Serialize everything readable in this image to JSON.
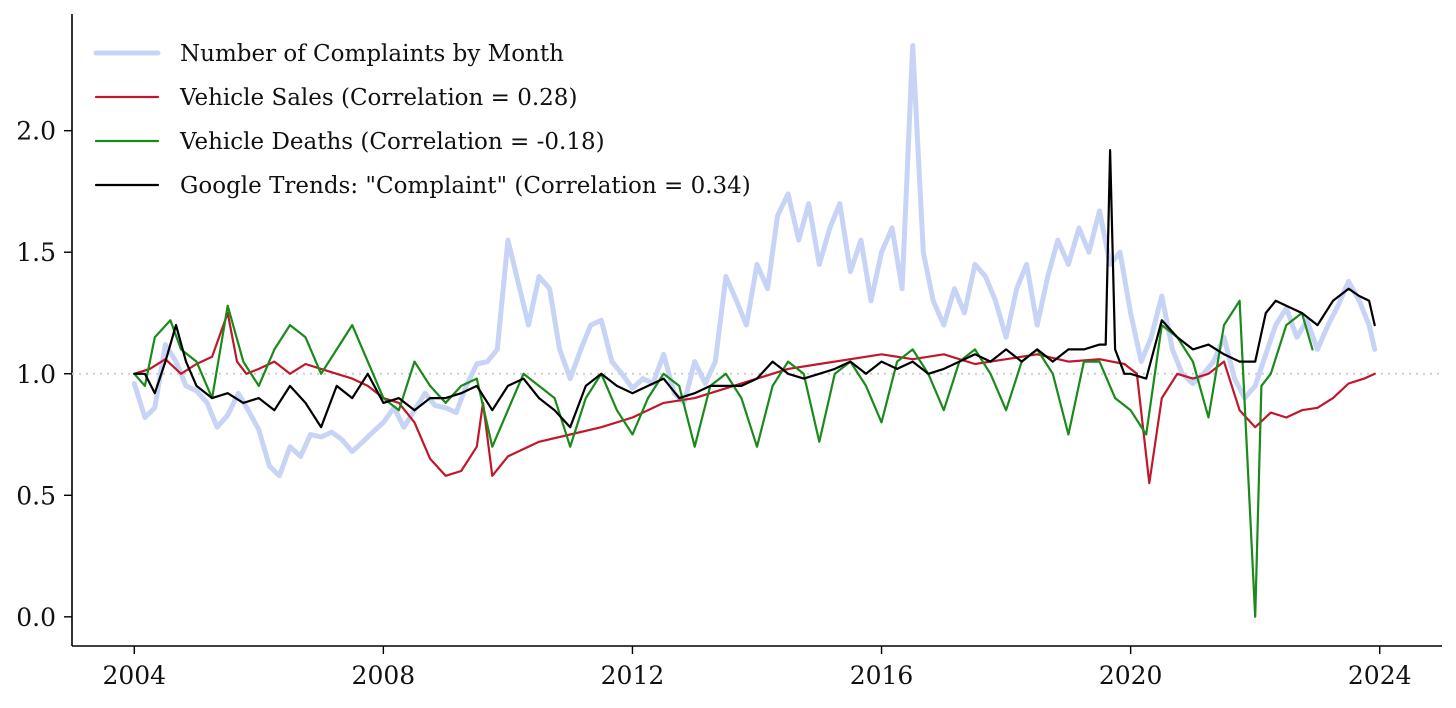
{
  "chart_data": {
    "type": "line",
    "title": "",
    "xlabel": "",
    "ylabel": "",
    "xlim": [
      2003.0,
      2025.0
    ],
    "ylim": [
      -0.12,
      2.48
    ],
    "x_ticks": [
      "2004",
      "2008",
      "2012",
      "2016",
      "2020",
      "2024"
    ],
    "y_ticks": [
      "0.0",
      "0.5",
      "1.0",
      "1.5",
      "2.0"
    ],
    "grid": "off",
    "reference_line": 1.0,
    "legend_position": "top-left",
    "series": [
      {
        "name": "Number of Complaints by Month",
        "color": "#c8d4f5",
        "x": [
          2004.0,
          2004.17,
          2004.33,
          2004.5,
          2004.67,
          2004.83,
          2005.0,
          2005.17,
          2005.33,
          2005.5,
          2005.67,
          2005.83,
          2006.0,
          2006.17,
          2006.33,
          2006.5,
          2006.67,
          2006.83,
          2007.0,
          2007.17,
          2007.33,
          2007.5,
          2007.67,
          2007.83,
          2008.0,
          2008.17,
          2008.33,
          2008.5,
          2008.67,
          2008.83,
          2009.0,
          2009.17,
          2009.33,
          2009.5,
          2009.67,
          2009.83,
          2010.0,
          2010.17,
          2010.33,
          2010.5,
          2010.67,
          2010.83,
          2011.0,
          2011.17,
          2011.33,
          2011.5,
          2011.67,
          2011.83,
          2012.0,
          2012.17,
          2012.33,
          2012.5,
          2012.67,
          2012.83,
          2013.0,
          2013.17,
          2013.33,
          2013.5,
          2013.67,
          2013.83,
          2014.0,
          2014.17,
          2014.33,
          2014.5,
          2014.67,
          2014.83,
          2015.0,
          2015.17,
          2015.33,
          2015.5,
          2015.67,
          2015.83,
          2016.0,
          2016.17,
          2016.33,
          2016.5,
          2016.67,
          2016.83,
          2017.0,
          2017.17,
          2017.33,
          2017.5,
          2017.67,
          2017.83,
          2018.0,
          2018.17,
          2018.33,
          2018.5,
          2018.67,
          2018.83,
          2019.0,
          2019.17,
          2019.33,
          2019.5,
          2019.67,
          2019.83,
          2020.0,
          2020.17,
          2020.33,
          2020.5,
          2020.67,
          2020.83,
          2021.0,
          2021.17,
          2021.33,
          2021.5,
          2021.67,
          2021.83,
          2022.0,
          2022.17,
          2022.33,
          2022.5,
          2022.67,
          2022.83,
          2023.0,
          2023.17,
          2023.33,
          2023.5,
          2023.67,
          2023.83,
          2023.92
        ],
        "values": [
          0.96,
          0.82,
          0.86,
          1.12,
          1.05,
          0.95,
          0.93,
          0.88,
          0.78,
          0.83,
          0.92,
          0.85,
          0.77,
          0.62,
          0.58,
          0.7,
          0.66,
          0.75,
          0.74,
          0.76,
          0.73,
          0.68,
          0.72,
          0.76,
          0.8,
          0.86,
          0.78,
          0.85,
          0.92,
          0.87,
          0.86,
          0.84,
          0.95,
          1.04,
          1.05,
          1.1,
          1.55,
          1.37,
          1.2,
          1.4,
          1.35,
          1.1,
          0.98,
          1.1,
          1.2,
          1.22,
          1.05,
          1.0,
          0.94,
          0.98,
          0.96,
          1.08,
          0.92,
          0.88,
          1.05,
          0.96,
          1.05,
          1.4,
          1.3,
          1.2,
          1.45,
          1.35,
          1.65,
          1.74,
          1.55,
          1.7,
          1.45,
          1.6,
          1.7,
          1.42,
          1.55,
          1.3,
          1.5,
          1.6,
          1.35,
          2.35,
          1.5,
          1.3,
          1.2,
          1.35,
          1.25,
          1.45,
          1.4,
          1.3,
          1.15,
          1.35,
          1.45,
          1.2,
          1.4,
          1.55,
          1.45,
          1.6,
          1.5,
          1.67,
          1.45,
          1.5,
          1.25,
          1.05,
          1.15,
          1.32,
          1.1,
          1.0,
          0.96,
          1.0,
          1.05,
          1.15,
          0.98,
          0.9,
          0.95,
          1.08,
          1.2,
          1.27,
          1.15,
          1.22,
          1.1,
          1.2,
          1.28,
          1.38,
          1.3,
          1.2,
          1.1
        ]
      },
      {
        "name": "Vehicle Sales (Correlation = 0.28)",
        "color": "#c0182a",
        "x": [
          2004.0,
          2004.25,
          2004.5,
          2004.75,
          2005.0,
          2005.25,
          2005.5,
          2005.65,
          2005.8,
          2006.0,
          2006.25,
          2006.5,
          2006.75,
          2007.0,
          2007.25,
          2007.5,
          2007.75,
          2008.0,
          2008.25,
          2008.5,
          2008.75,
          2009.0,
          2009.25,
          2009.5,
          2009.6,
          2009.75,
          2010.0,
          2010.5,
          2011.0,
          2011.5,
          2012.0,
          2012.5,
          2013.0,
          2013.5,
          2014.0,
          2014.5,
          2015.0,
          2015.5,
          2016.0,
          2016.5,
          2017.0,
          2017.5,
          2018.0,
          2018.5,
          2019.0,
          2019.5,
          2019.9,
          2020.1,
          2020.3,
          2020.5,
          2020.75,
          2021.0,
          2021.25,
          2021.5,
          2021.75,
          2022.0,
          2022.25,
          2022.5,
          2022.75,
          2023.0,
          2023.25,
          2023.5,
          2023.75,
          2023.92
        ],
        "values": [
          1.0,
          1.02,
          1.06,
          1.0,
          1.04,
          1.07,
          1.25,
          1.05,
          1.0,
          1.02,
          1.05,
          1.0,
          1.04,
          1.02,
          1.0,
          0.98,
          0.95,
          0.9,
          0.88,
          0.8,
          0.65,
          0.58,
          0.6,
          0.7,
          0.88,
          0.58,
          0.66,
          0.72,
          0.75,
          0.78,
          0.82,
          0.88,
          0.9,
          0.94,
          0.98,
          1.02,
          1.04,
          1.06,
          1.08,
          1.06,
          1.08,
          1.04,
          1.06,
          1.08,
          1.05,
          1.06,
          1.04,
          1.0,
          0.55,
          0.9,
          1.0,
          0.98,
          1.0,
          1.05,
          0.85,
          0.78,
          0.84,
          0.82,
          0.85,
          0.86,
          0.9,
          0.96,
          0.98,
          1.0
        ]
      },
      {
        "name": "Vehicle Deaths (Correlation = -0.18)",
        "color": "#1a8a1a",
        "x": [
          2004.0,
          2004.17,
          2004.33,
          2004.58,
          2004.75,
          2005.0,
          2005.25,
          2005.5,
          2005.75,
          2006.0,
          2006.25,
          2006.5,
          2006.75,
          2007.0,
          2007.25,
          2007.5,
          2007.75,
          2008.0,
          2008.25,
          2008.5,
          2008.75,
          2009.0,
          2009.25,
          2009.5,
          2009.75,
          2010.0,
          2010.25,
          2010.5,
          2010.75,
          2011.0,
          2011.25,
          2011.5,
          2011.75,
          2012.0,
          2012.25,
          2012.5,
          2012.75,
          2013.0,
          2013.25,
          2013.5,
          2013.75,
          2014.0,
          2014.25,
          2014.5,
          2014.75,
          2015.0,
          2015.25,
          2015.5,
          2015.75,
          2016.0,
          2016.25,
          2016.5,
          2016.75,
          2017.0,
          2017.25,
          2017.5,
          2017.75,
          2018.0,
          2018.25,
          2018.5,
          2018.75,
          2019.0,
          2019.25,
          2019.5,
          2019.75,
          2020.0,
          2020.25,
          2020.5,
          2020.75,
          2021.0,
          2021.25,
          2021.5,
          2021.75,
          2022.0,
          2022.1,
          2022.25,
          2022.5,
          2022.75,
          2022.92
        ],
        "values": [
          1.0,
          0.95,
          1.15,
          1.22,
          1.1,
          1.05,
          0.9,
          1.28,
          1.05,
          0.95,
          1.1,
          1.2,
          1.15,
          1.0,
          1.1,
          1.2,
          1.05,
          0.9,
          0.85,
          1.05,
          0.95,
          0.88,
          0.95,
          0.98,
          0.7,
          0.85,
          1.0,
          0.95,
          0.9,
          0.7,
          0.9,
          1.0,
          0.85,
          0.75,
          0.9,
          1.0,
          0.95,
          0.7,
          0.95,
          1.0,
          0.9,
          0.7,
          0.95,
          1.05,
          1.0,
          0.72,
          1.0,
          1.05,
          0.95,
          0.8,
          1.05,
          1.1,
          1.0,
          0.85,
          1.05,
          1.1,
          1.0,
          0.85,
          1.05,
          1.1,
          1.0,
          0.75,
          1.05,
          1.05,
          0.9,
          0.85,
          0.75,
          1.2,
          1.15,
          1.05,
          0.82,
          1.2,
          1.3,
          0.0,
          0.95,
          1.0,
          1.2,
          1.25,
          1.1
        ]
      },
      {
        "name": "Google Trends: \"Complaint\" (Correlation = 0.34)",
        "color": "#000000",
        "x": [
          2004.0,
          2004.17,
          2004.33,
          2004.5,
          2004.67,
          2004.83,
          2005.0,
          2005.25,
          2005.5,
          2005.75,
          2006.0,
          2006.25,
          2006.5,
          2006.75,
          2007.0,
          2007.25,
          2007.5,
          2007.75,
          2008.0,
          2008.25,
          2008.5,
          2008.75,
          2009.0,
          2009.25,
          2009.5,
          2009.75,
          2010.0,
          2010.25,
          2010.5,
          2010.75,
          2011.0,
          2011.25,
          2011.5,
          2011.75,
          2012.0,
          2012.25,
          2012.5,
          2012.75,
          2013.0,
          2013.25,
          2013.5,
          2013.75,
          2014.0,
          2014.25,
          2014.5,
          2014.75,
          2015.0,
          2015.25,
          2015.5,
          2015.75,
          2016.0,
          2016.25,
          2016.5,
          2016.75,
          2017.0,
          2017.25,
          2017.5,
          2017.75,
          2018.0,
          2018.25,
          2018.5,
          2018.75,
          2019.0,
          2019.25,
          2019.5,
          2019.6,
          2019.67,
          2019.75,
          2019.9,
          2020.0,
          2020.25,
          2020.5,
          2020.75,
          2021.0,
          2021.25,
          2021.5,
          2021.75,
          2022.0,
          2022.17,
          2022.33,
          2022.5,
          2022.75,
          2023.0,
          2023.25,
          2023.5,
          2023.67,
          2023.83,
          2023.92
        ],
        "values": [
          1.0,
          1.0,
          0.92,
          1.05,
          1.2,
          1.05,
          0.95,
          0.9,
          0.92,
          0.88,
          0.9,
          0.85,
          0.95,
          0.88,
          0.78,
          0.95,
          0.9,
          1.0,
          0.88,
          0.9,
          0.85,
          0.9,
          0.9,
          0.92,
          0.95,
          0.85,
          0.95,
          0.98,
          0.9,
          0.85,
          0.78,
          0.95,
          1.0,
          0.95,
          0.92,
          0.95,
          0.98,
          0.9,
          0.92,
          0.95,
          0.95,
          0.95,
          0.98,
          1.05,
          1.0,
          0.98,
          1.0,
          1.02,
          1.05,
          1.0,
          1.05,
          1.02,
          1.05,
          1.0,
          1.02,
          1.05,
          1.08,
          1.05,
          1.1,
          1.05,
          1.1,
          1.05,
          1.1,
          1.1,
          1.12,
          1.12,
          1.92,
          1.1,
          1.0,
          1.0,
          0.98,
          1.22,
          1.15,
          1.1,
          1.12,
          1.08,
          1.05,
          1.05,
          1.25,
          1.3,
          1.28,
          1.25,
          1.2,
          1.3,
          1.35,
          1.32,
          1.3,
          1.2
        ]
      }
    ]
  }
}
